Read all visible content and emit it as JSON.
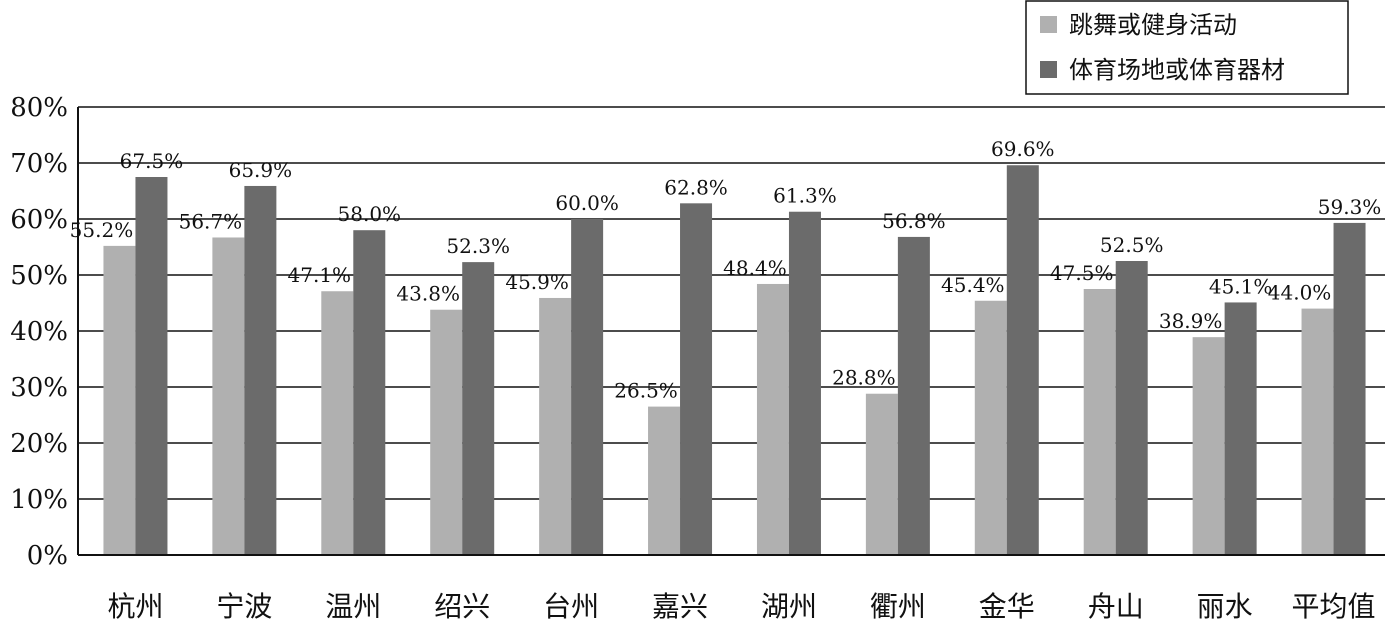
{
  "chart_data": {
    "type": "bar",
    "categories": [
      "杭州",
      "宁波",
      "温州",
      "绍兴",
      "台州",
      "嘉兴",
      "湖州",
      "衢州",
      "金华",
      "舟山",
      "丽水",
      "平均值"
    ],
    "series": [
      {
        "name": "跳舞或健身活动",
        "color": "#b0b0b0",
        "values": [
          55.2,
          56.7,
          47.1,
          43.8,
          45.9,
          26.5,
          48.4,
          28.8,
          45.4,
          47.5,
          38.9,
          44.0
        ],
        "labels": [
          "55.2%",
          "56.7%",
          "47.1%",
          "43.8%",
          "45.9%",
          "26.5%",
          "48.4%",
          "28.8%",
          "45.4%",
          "47.5%",
          "38.9%",
          "44.0%"
        ]
      },
      {
        "name": "体育场地或体育器材",
        "color": "#6b6b6b",
        "values": [
          67.5,
          65.9,
          58.0,
          52.3,
          60.0,
          62.8,
          61.3,
          56.8,
          69.6,
          52.5,
          45.1,
          59.3
        ],
        "labels": [
          "67.5%",
          "65.9%",
          "58.0%",
          "52.3%",
          "60.0%",
          "62.8%",
          "61.3%",
          "56.8%",
          "69.6%",
          "52.5%",
          "45.1%",
          "59.3%"
        ]
      }
    ],
    "ylim": [
      0,
      80
    ],
    "yticks": [
      "0%",
      "10%",
      "20%",
      "30%",
      "40%",
      "50%",
      "60%",
      "70%",
      "80%"
    ],
    "grid": true,
    "legend_position": "top-right"
  }
}
